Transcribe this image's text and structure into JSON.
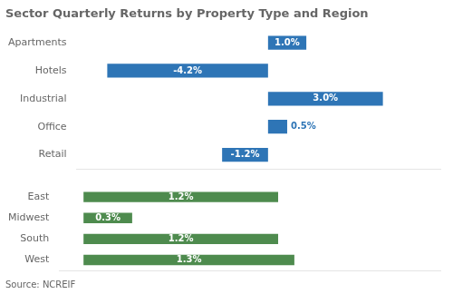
{
  "chart_data": [
    {
      "type": "bar",
      "title": "Sector Quarterly Returns by Property Type and Region",
      "orientation": "horizontal",
      "categories": [
        "Apartments",
        "Hotels",
        "Industrial",
        "Office",
        "Retail"
      ],
      "values": [
        1.0,
        -4.2,
        3.0,
        0.5,
        -1.2
      ],
      "value_labels": [
        "1.0%",
        "-4.2%",
        "3.0%",
        "0.5%",
        "-1.2%"
      ],
      "data_labels": true,
      "color": "#2e75b6",
      "xlim": [
        -5.0,
        4.5
      ],
      "grid": false,
      "tick_labels": "y"
    },
    {
      "type": "bar",
      "orientation": "horizontal",
      "categories": [
        "East",
        "Midwest",
        "South",
        "West"
      ],
      "values": [
        1.2,
        0.3,
        1.2,
        1.3
      ],
      "value_labels": [
        "1.2%",
        "0.3%",
        "1.2%",
        "1.3%"
      ],
      "data_labels": true,
      "color": "#4e8b4e",
      "xlim": [
        -0.15,
        2.2
      ],
      "grid": false,
      "tick_labels": "y",
      "annotations": [
        "Source: NCREIF"
      ]
    }
  ]
}
